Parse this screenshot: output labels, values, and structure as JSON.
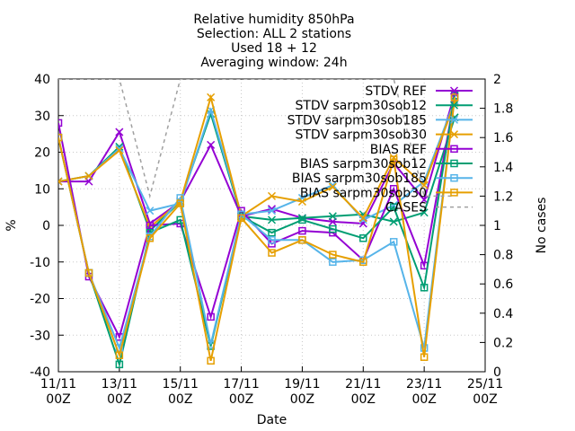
{
  "chart_data": {
    "type": "line",
    "title_lines": [
      "Relative humidity 850hPa",
      "Selection: ALL       2 stations",
      "Used 18 + 12",
      "Averaging window: 24h"
    ],
    "xlabel": "Date",
    "ylabel": "%",
    "y2label": "No cases",
    "x_ticks": [
      {
        "x": 0,
        "line1": "11/11",
        "line2": "00Z"
      },
      {
        "x": 2,
        "line1": "13/11",
        "line2": "00Z"
      },
      {
        "x": 4,
        "line1": "15/11",
        "line2": "00Z"
      },
      {
        "x": 6,
        "line1": "17/11",
        "line2": "00Z"
      },
      {
        "x": 8,
        "line1": "19/11",
        "line2": "00Z"
      },
      {
        "x": 10,
        "line1": "21/11",
        "line2": "00Z"
      },
      {
        "x": 12,
        "line1": "23/11",
        "line2": "00Z"
      },
      {
        "x": 14,
        "line1": "25/11",
        "line2": "00Z"
      }
    ],
    "x_unit": "days since 11/11 00Z",
    "xlim": [
      0,
      14
    ],
    "ylim": [
      -40,
      40
    ],
    "y_ticks": [
      "-40",
      "-30",
      "-20",
      "-10",
      "0",
      "10",
      "20",
      "30",
      "40"
    ],
    "y2lim": [
      0,
      2
    ],
    "y2_ticks": [
      "0",
      "0.2",
      "0.4",
      "0.6",
      "0.8",
      "1",
      "1.2",
      "1.4",
      "1.6",
      "1.8",
      "2"
    ],
    "legend_position": "top-right",
    "series": [
      {
        "name": "STDV REF",
        "color": "#9400d3",
        "marker": "x",
        "dash": "",
        "x": [
          0,
          1,
          2,
          3,
          4,
          5,
          6,
          7,
          8,
          9,
          10,
          11,
          12,
          13
        ],
        "y": [
          12,
          12,
          25.5,
          0.5,
          6.5,
          22,
          2.5,
          4.5,
          2,
          1,
          0.5,
          17,
          7,
          36
        ]
      },
      {
        "name": "STDV sarpm30sob12",
        "color": "#009e73",
        "marker": "x",
        "dash": "",
        "x": [
          0,
          1,
          2,
          3,
          4,
          5,
          6,
          7,
          8,
          9,
          10,
          11,
          12,
          13
        ],
        "y": [
          12,
          13.5,
          21.5,
          -1.5,
          6.5,
          30.5,
          2.5,
          1.5,
          2,
          2.5,
          3,
          1,
          3.5,
          29.5
        ]
      },
      {
        "name": "STDV sarpm30sob185",
        "color": "#56b4e9",
        "marker": "x",
        "dash": "",
        "x": [
          0,
          1,
          2,
          3,
          4,
          5,
          6,
          7,
          8,
          9,
          10,
          11,
          12,
          13
        ],
        "y": [
          12,
          13.5,
          21,
          4,
          6,
          31.5,
          3,
          4,
          7.5,
          11,
          1.5,
          5.5,
          12,
          34
        ]
      },
      {
        "name": "STDV sarpm30sob30",
        "color": "#e69f00",
        "marker": "x",
        "dash": "",
        "x": [
          0,
          1,
          2,
          3,
          4,
          5,
          6,
          7,
          8,
          9,
          10,
          11,
          12,
          13
        ],
        "y": [
          12,
          13.5,
          20.5,
          -0.5,
          6.5,
          35,
          2.5,
          8,
          6.5,
          10.5,
          2,
          18.5,
          11,
          33.5
        ]
      },
      {
        "name": "BIAS REF",
        "color": "#9400d3",
        "marker": "square",
        "dash": "",
        "x": [
          0,
          1,
          2,
          3,
          4,
          5,
          6,
          7,
          8,
          9,
          10,
          11,
          12,
          13
        ],
        "y": [
          28,
          -14,
          -30.5,
          0,
          0.5,
          -25,
          4,
          -5,
          -1.5,
          -2,
          -9.5,
          10,
          -11,
          35
        ]
      },
      {
        "name": "BIAS sarpm30sob12",
        "color": "#009e73",
        "marker": "square",
        "dash": "",
        "x": [
          0,
          1,
          2,
          3,
          4,
          5,
          6,
          7,
          8,
          9,
          10,
          11,
          12,
          13
        ],
        "y": [
          24,
          -13,
          -38,
          -2,
          1.5,
          -33,
          2.5,
          -2,
          1.5,
          -1,
          -3.5,
          5,
          -17,
          35.5
        ]
      },
      {
        "name": "BIAS sarpm30sob185",
        "color": "#56b4e9",
        "marker": "square",
        "dash": "",
        "x": [
          0,
          1,
          2,
          3,
          4,
          5,
          6,
          7,
          8,
          9,
          10,
          11,
          12,
          13
        ],
        "y": [
          24,
          -13,
          -33.5,
          -3,
          7.5,
          -32.5,
          3,
          -4,
          -4,
          -10,
          -9.5,
          -4.5,
          -33.5,
          35
        ]
      },
      {
        "name": "BIAS sarpm30sob30",
        "color": "#e69f00",
        "marker": "square",
        "dash": "",
        "x": [
          0,
          1,
          2,
          3,
          4,
          5,
          6,
          7,
          8,
          9,
          10,
          11,
          12,
          13
        ],
        "y": [
          24,
          -13,
          -35.5,
          -3.5,
          6,
          -37,
          2,
          -7.5,
          -4,
          -8,
          -10,
          18,
          -36,
          35
        ]
      },
      {
        "name": "CASES",
        "color": "#a0a0a0",
        "marker": "none",
        "dash": "4,4",
        "axis": "y2",
        "x": [
          0,
          1,
          2,
          3,
          4,
          5,
          6,
          7,
          8,
          9,
          10,
          11,
          12,
          13
        ],
        "y": [
          2,
          2,
          2,
          1.2,
          2,
          2,
          2,
          2,
          2,
          2,
          2,
          2,
          1.2,
          1.2
        ]
      }
    ]
  }
}
